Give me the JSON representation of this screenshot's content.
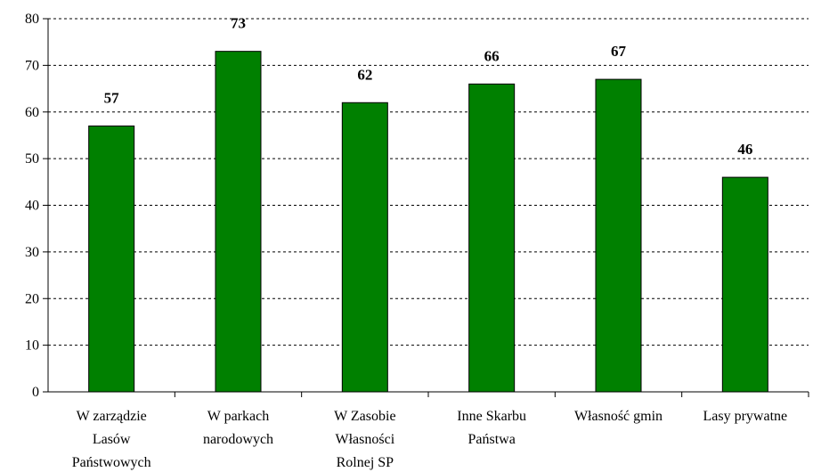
{
  "chart_data": {
    "type": "bar",
    "categories": [
      [
        "W zarządzie",
        "Lasów",
        "Państwowych"
      ],
      [
        "W parkach",
        "narodowych"
      ],
      [
        "W Zasobie",
        "Własności",
        "Rolnej SP"
      ],
      [
        "Inne Skarbu",
        "Państwa"
      ],
      [
        "Własność gmin"
      ],
      [
        "Lasy prywatne"
      ]
    ],
    "values": [
      57,
      73,
      62,
      66,
      67,
      46
    ],
    "data_labels": [
      "57",
      "73",
      "62",
      "66",
      "67",
      "46"
    ],
    "yticks": [
      "0",
      "10",
      "20",
      "30",
      "40",
      "50",
      "60",
      "70",
      "80"
    ],
    "ylim": [
      0,
      80
    ],
    "bar_color": "#008000",
    "grid": true
  }
}
